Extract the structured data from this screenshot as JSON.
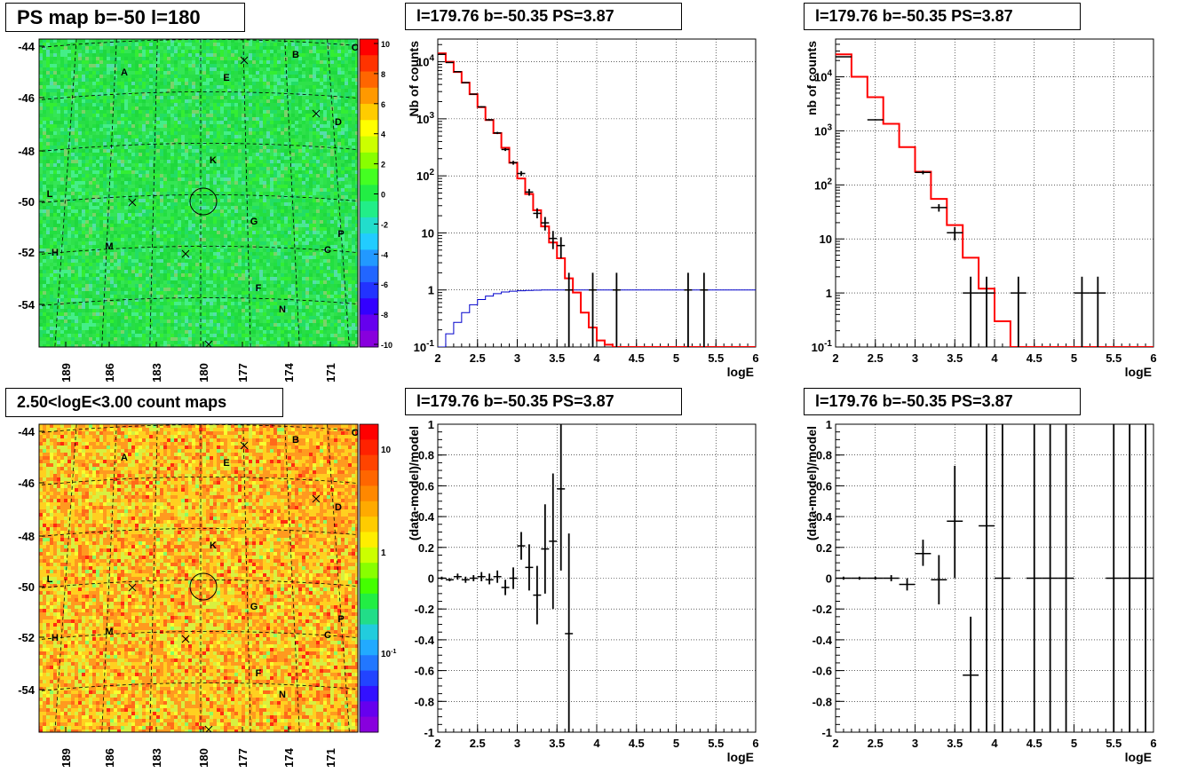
{
  "titles": {
    "map_top": "PS map b=-50 l=180",
    "map_bottom": "2.50<logE<3.00 count maps",
    "spec_top_mid": "l=179.76 b=-50.35 PS=3.87",
    "spec_top_right": "l=179.76 b=-50.35 PS=3.87",
    "res_bot_mid": "l=179.76 b=-50.35 PS=3.87",
    "res_bot_right": "l=179.76 b=-50.35 PS=3.87"
  },
  "colors": {
    "model_line": "#ff0000",
    "background_model_line": "#0000cc",
    "data_points": "#000000",
    "map_green": "#22dd44",
    "map_orange": "#ff9a1f"
  },
  "maps": {
    "y_ticks": [
      "-44",
      "-46",
      "-48",
      "-50",
      "-52",
      "-54"
    ],
    "x_ticks": [
      "189",
      "186",
      "183",
      "180",
      "177",
      "174",
      "171"
    ],
    "source_labels": [
      "A",
      "B",
      "C",
      "D",
      "E",
      "F",
      "G",
      "H",
      "K",
      "L",
      "M",
      "N",
      "O",
      "P"
    ],
    "ps_palette_ticks": [
      "10",
      "8",
      "6",
      "4",
      "2",
      "0",
      "-2",
      "-4",
      "-6",
      "-8",
      "-10"
    ],
    "count_palette_ticks": [
      "10",
      "1",
      "10",
      "-1"
    ]
  },
  "chart_data": [
    {
      "id": "spec_top_mid",
      "type": "line",
      "title": "l=179.76 b=-50.35 PS=3.87",
      "xlabel": "logE",
      "ylabel": "Nb of counts",
      "xlim": [
        2,
        6
      ],
      "ylim": [
        0.1,
        25000
      ],
      "log_y": true,
      "grid": true,
      "x_ticks": [
        "2",
        "2.5",
        "3",
        "3.5",
        "4",
        "4.5",
        "5",
        "5.5",
        "6"
      ],
      "y_ticks": [
        {
          "label": "10",
          "sup": "-1",
          "value": 0.1
        },
        {
          "label": "1",
          "sup": "",
          "value": 1
        },
        {
          "label": "10",
          "sup": "",
          "value": 10
        },
        {
          "label": "10",
          "sup": "2",
          "value": 100
        },
        {
          "label": "10",
          "sup": "3",
          "value": 1000
        },
        {
          "label": "10",
          "sup": "4",
          "value": 10000
        }
      ],
      "bin_edges": [
        2.0,
        2.1,
        2.2,
        2.3,
        2.4,
        2.5,
        2.6,
        2.7,
        2.8,
        2.9,
        3.0,
        3.1,
        3.2,
        3.3,
        3.4,
        3.5,
        3.6,
        3.7,
        3.8,
        3.9,
        4.0,
        4.1,
        4.2,
        4.3,
        6.0
      ],
      "model": [
        14000,
        10000,
        6600,
        4300,
        2700,
        1600,
        950,
        560,
        310,
        170,
        90,
        48,
        25,
        13,
        6.8,
        3.6,
        1.6,
        0.9,
        0.4,
        0.22,
        0.13,
        0.11,
        0.1,
        0.1
      ],
      "background_x": [
        2.0,
        2.1,
        2.2,
        2.3,
        2.4,
        2.5,
        2.6,
        2.7,
        2.8,
        2.9,
        3.0,
        3.1,
        3.2,
        3.3,
        3.4,
        3.5,
        3.6,
        3.7,
        3.8,
        3.9,
        4.0,
        6.0
      ],
      "background_y": [
        0.1,
        0.17,
        0.27,
        0.4,
        0.55,
        0.68,
        0.78,
        0.86,
        0.92,
        0.95,
        0.97,
        0.98,
        0.99,
        1.0,
        1.0,
        1.0,
        1.0,
        1.0,
        1.0,
        1.0,
        1.0,
        1.0
      ],
      "data": [
        {
          "x": 2.05,
          "y": 13500,
          "lo": 13300,
          "hi": 13700
        },
        {
          "x": 2.15,
          "y": 9700,
          "lo": 9500,
          "hi": 9900
        },
        {
          "x": 2.25,
          "y": 6700,
          "lo": 6550,
          "hi": 6850
        },
        {
          "x": 2.35,
          "y": 4300,
          "lo": 4200,
          "hi": 4400
        },
        {
          "x": 2.45,
          "y": 2700,
          "lo": 2650,
          "hi": 2750
        },
        {
          "x": 2.55,
          "y": 1620,
          "lo": 1580,
          "hi": 1660
        },
        {
          "x": 2.65,
          "y": 960,
          "lo": 930,
          "hi": 990
        },
        {
          "x": 2.75,
          "y": 565,
          "lo": 540,
          "hi": 590
        },
        {
          "x": 2.85,
          "y": 290,
          "lo": 273,
          "hi": 307
        },
        {
          "x": 2.95,
          "y": 170,
          "lo": 157,
          "hi": 183
        },
        {
          "x": 3.05,
          "y": 110,
          "lo": 100,
          "hi": 121
        },
        {
          "x": 3.15,
          "y": 52,
          "lo": 45,
          "hi": 59
        },
        {
          "x": 3.25,
          "y": 22,
          "lo": 18,
          "hi": 27
        },
        {
          "x": 3.35,
          "y": 15,
          "lo": 11,
          "hi": 19
        },
        {
          "x": 3.45,
          "y": 8,
          "lo": 5.2,
          "hi": 10.8
        },
        {
          "x": 3.55,
          "y": 6,
          "lo": 3.6,
          "hi": 8.4
        },
        {
          "x": 3.65,
          "y": 1,
          "lo": 0.1,
          "hi": 2
        },
        {
          "x": 3.95,
          "y": 1,
          "lo": 0.1,
          "hi": 2
        },
        {
          "x": 4.25,
          "y": 1,
          "lo": 0.1,
          "hi": 2
        },
        {
          "x": 5.15,
          "y": 1,
          "lo": 0.1,
          "hi": 2
        },
        {
          "x": 5.35,
          "y": 1,
          "lo": 0.1,
          "hi": 2
        }
      ]
    },
    {
      "id": "spec_top_right",
      "type": "line",
      "title": "l=179.76 b=-50.35 PS=3.87",
      "xlabel": "logE",
      "ylabel": "nb of counts",
      "xlim": [
        2,
        6
      ],
      "ylim": [
        0.1,
        50000
      ],
      "log_y": true,
      "grid": true,
      "x_ticks": [
        "2",
        "2.5",
        "3",
        "3.5",
        "4",
        "4.5",
        "5",
        "5.5",
        "6"
      ],
      "y_ticks": [
        {
          "label": "10",
          "sup": "-1",
          "value": 0.1
        },
        {
          "label": "1",
          "sup": "",
          "value": 1
        },
        {
          "label": "10",
          "sup": "",
          "value": 10
        },
        {
          "label": "10",
          "sup": "2",
          "value": 100
        },
        {
          "label": "10",
          "sup": "3",
          "value": 1000
        },
        {
          "label": "10",
          "sup": "4",
          "value": 10000
        }
      ],
      "bin_edges": [
        2.0,
        2.2,
        2.4,
        2.6,
        2.8,
        3.0,
        3.2,
        3.4,
        3.6,
        3.8,
        4.0,
        4.2,
        6.0
      ],
      "model": [
        26000,
        10000,
        4200,
        1350,
        500,
        175,
        55,
        18,
        4.5,
        1.2,
        0.3,
        0.1
      ],
      "data": [
        {
          "x": 2.1,
          "y": 23500,
          "lo": 23300,
          "hi": 23700
        },
        {
          "x": 2.5,
          "y": 1600,
          "lo": 1560,
          "hi": 1640
        },
        {
          "x": 3.1,
          "y": 170,
          "lo": 157,
          "hi": 183
        },
        {
          "x": 3.3,
          "y": 38,
          "lo": 32,
          "hi": 44
        },
        {
          "x": 3.5,
          "y": 13,
          "lo": 9.4,
          "hi": 16.6
        },
        {
          "x": 3.7,
          "y": 1,
          "lo": 0.1,
          "hi": 2
        },
        {
          "x": 3.9,
          "y": 1,
          "lo": 0.1,
          "hi": 2
        },
        {
          "x": 4.3,
          "y": 1,
          "lo": 0.1,
          "hi": 2
        },
        {
          "x": 5.1,
          "y": 1,
          "lo": 0.1,
          "hi": 2
        },
        {
          "x": 5.3,
          "y": 1,
          "lo": 0.1,
          "hi": 2
        }
      ]
    },
    {
      "id": "res_bot_mid",
      "type": "scatter",
      "title": "l=179.76 b=-50.35 PS=3.87",
      "xlabel": "logE",
      "ylabel": "(data-model)/model",
      "xlim": [
        2,
        6
      ],
      "ylim": [
        -1,
        1
      ],
      "grid": true,
      "x_ticks": [
        "2",
        "2.5",
        "3",
        "3.5",
        "4",
        "4.5",
        "5",
        "5.5",
        "6"
      ],
      "y_ticks": [
        "1",
        "0.8",
        "0.6",
        "0.4",
        "0.2",
        "0",
        "-0.2",
        "-0.4",
        "-0.6",
        "-0.8",
        "-1"
      ],
      "xerr": 0.05,
      "data": [
        {
          "x": 2.05,
          "y": 0.0,
          "lo": -0.01,
          "hi": 0.01
        },
        {
          "x": 2.15,
          "y": -0.01,
          "lo": -0.02,
          "hi": 0.0
        },
        {
          "x": 2.25,
          "y": 0.01,
          "lo": -0.01,
          "hi": 0.03
        },
        {
          "x": 2.35,
          "y": -0.01,
          "lo": -0.03,
          "hi": 0.01
        },
        {
          "x": 2.45,
          "y": 0.0,
          "lo": -0.02,
          "hi": 0.02
        },
        {
          "x": 2.55,
          "y": 0.01,
          "lo": -0.02,
          "hi": 0.04
        },
        {
          "x": 2.65,
          "y": -0.01,
          "lo": -0.04,
          "hi": 0.03
        },
        {
          "x": 2.75,
          "y": 0.01,
          "lo": -0.03,
          "hi": 0.05
        },
        {
          "x": 2.85,
          "y": -0.06,
          "lo": -0.11,
          "hi": -0.01
        },
        {
          "x": 2.95,
          "y": 0.0,
          "lo": -0.07,
          "hi": 0.07
        },
        {
          "x": 3.05,
          "y": 0.21,
          "lo": 0.12,
          "hi": 0.3
        },
        {
          "x": 3.15,
          "y": 0.07,
          "lo": -0.08,
          "hi": 0.22
        },
        {
          "x": 3.25,
          "y": -0.11,
          "lo": -0.3,
          "hi": 0.08
        },
        {
          "x": 3.35,
          "y": 0.19,
          "lo": -0.1,
          "hi": 0.48
        },
        {
          "x": 3.45,
          "y": 0.24,
          "lo": -0.2,
          "hi": 0.68
        },
        {
          "x": 3.55,
          "y": 0.58,
          "lo": 0.05,
          "hi": 1.0
        },
        {
          "x": 3.65,
          "y": -0.36,
          "lo": -1.0,
          "hi": 0.29
        }
      ]
    },
    {
      "id": "res_bot_right",
      "type": "scatter",
      "title": "l=179.76 b=-50.35 PS=3.87",
      "xlabel": "logE",
      "ylabel": "(data-model)/model",
      "xlim": [
        2,
        6
      ],
      "ylim": [
        -1,
        1
      ],
      "grid": true,
      "x_ticks": [
        "2",
        "2.5",
        "3",
        "3.5",
        "4",
        "4.5",
        "5",
        "5.5",
        "6"
      ],
      "y_ticks": [
        "1",
        "0.8",
        "0.6",
        "0.4",
        "0.2",
        "0",
        "-0.2",
        "-0.4",
        "-0.6",
        "-0.8",
        "-1"
      ],
      "xerr": 0.1,
      "data": [
        {
          "x": 2.1,
          "y": 0.0,
          "lo": -0.01,
          "hi": 0.01
        },
        {
          "x": 2.3,
          "y": 0.0,
          "lo": -0.01,
          "hi": 0.01
        },
        {
          "x": 2.5,
          "y": 0.0,
          "lo": -0.01,
          "hi": 0.01
        },
        {
          "x": 2.7,
          "y": 0.0,
          "lo": -0.02,
          "hi": 0.02
        },
        {
          "x": 2.9,
          "y": -0.04,
          "lo": -0.08,
          "hi": 0.0
        },
        {
          "x": 3.1,
          "y": 0.16,
          "lo": 0.08,
          "hi": 0.25
        },
        {
          "x": 3.3,
          "y": -0.01,
          "lo": -0.17,
          "hi": 0.15
        },
        {
          "x": 3.5,
          "y": 0.37,
          "lo": 0.0,
          "hi": 0.73
        },
        {
          "x": 3.7,
          "y": -0.63,
          "lo": -1.0,
          "hi": -0.25
        },
        {
          "x": 3.9,
          "y": 0.34,
          "lo": -1.0,
          "hi": 1.0
        },
        {
          "x": 4.1,
          "y": 0.0,
          "lo": -1.0,
          "hi": 1.0
        },
        {
          "x": 4.5,
          "y": 0.0,
          "lo": -1.0,
          "hi": 1.0
        },
        {
          "x": 4.7,
          "y": 0.0,
          "lo": -1.0,
          "hi": 1.0
        },
        {
          "x": 4.9,
          "y": 0.0,
          "lo": -1.0,
          "hi": 1.0
        },
        {
          "x": 5.5,
          "y": 0.0,
          "lo": -1.0,
          "hi": 1.0
        },
        {
          "x": 5.7,
          "y": 0.0,
          "lo": -1.0,
          "hi": 1.0
        },
        {
          "x": 5.9,
          "y": 0.0,
          "lo": -1.0,
          "hi": 1.0
        }
      ]
    }
  ]
}
